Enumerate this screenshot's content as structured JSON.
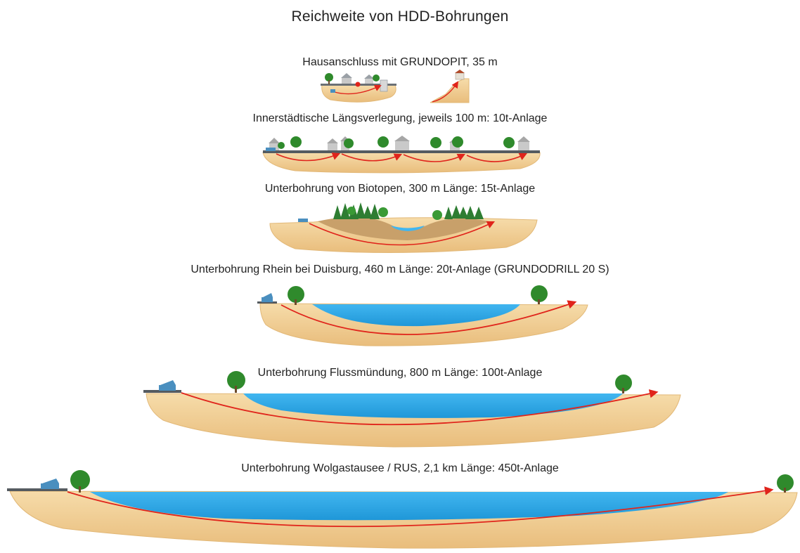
{
  "diagram": {
    "title": "Reichweite von HDD-Bohrungen",
    "scenarios": [
      {
        "label": "Hausanschluss mit GRUNDOPIT, 35 m"
      },
      {
        "label": "Innerstädtische Längsverlegung, jeweils 100 m: 10t-Anlage"
      },
      {
        "label": "Unterbohrung von Biotopen, 300 m Länge: 15t-Anlage"
      },
      {
        "label": "Unterbohrung Rhein bei Duisburg, 460 m Länge: 20t-Anlage (GRUNDODRILL 20 S)"
      },
      {
        "label": "Unterbohrung Flussmündung, 800 m Länge: 100t-Anlage"
      },
      {
        "label": "Unterbohrung Wolgastausee / RUS, 2,1 km Länge: 450t-Anlage"
      }
    ],
    "colors": {
      "soil": "#f0cf96",
      "soil_dark": "#d9a866",
      "water": "#2ea7e6",
      "bore": "#e0241b",
      "tree": "#2f8a2c",
      "road": "#555b60",
      "rig": "#4a8fbf"
    }
  }
}
